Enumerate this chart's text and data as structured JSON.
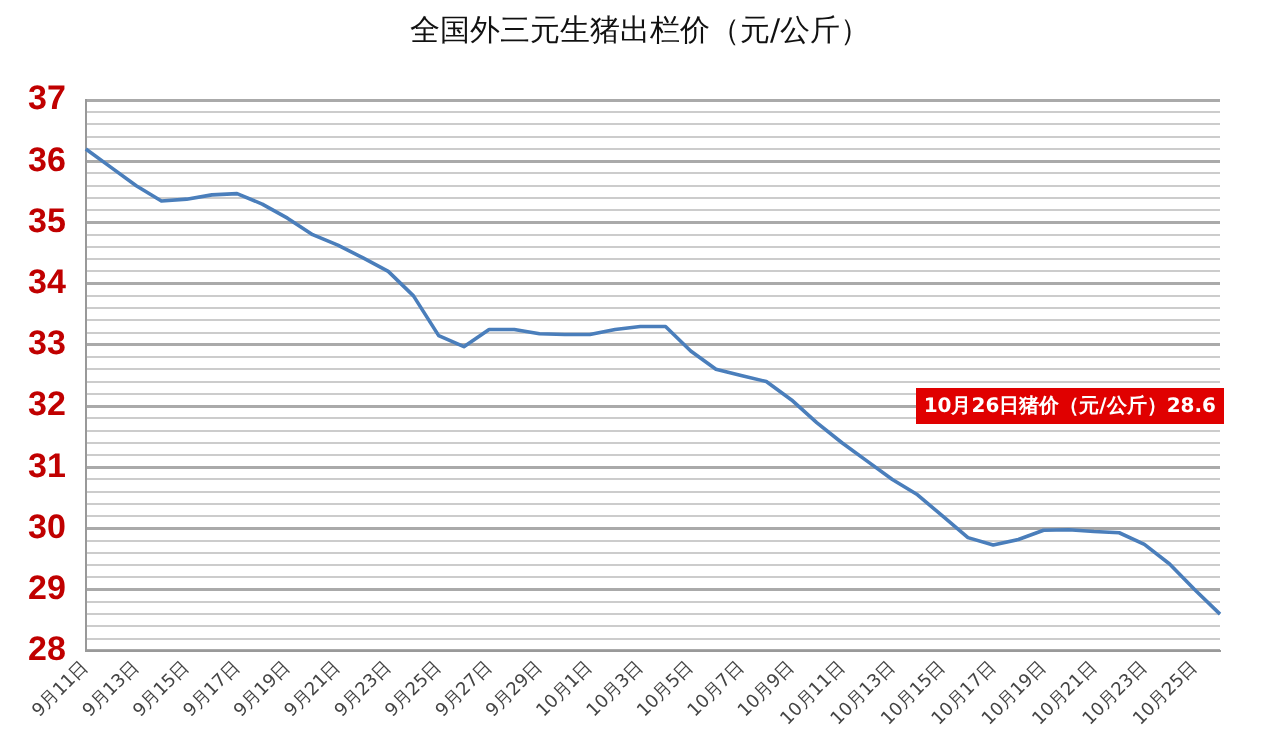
{
  "chart_data": {
    "type": "line",
    "title": "全国外三元生猪出栏价（元/公斤）",
    "categories": [
      "9月11日",
      null,
      "9月13日",
      null,
      "9月15日",
      null,
      "9月17日",
      null,
      "9月19日",
      null,
      "9月21日",
      null,
      "9月23日",
      null,
      "9月25日",
      null,
      "9月27日",
      null,
      "9月29日",
      null,
      "10月1日",
      null,
      "10月3日",
      null,
      "10月5日",
      null,
      "10月7日",
      null,
      "10月9日",
      null,
      "10月11日",
      null,
      "10月13日",
      null,
      "10月15日",
      null,
      "10月17日",
      null,
      "10月19日",
      null,
      "10月21日",
      null,
      "10月23日",
      null,
      "10月25日",
      null
    ],
    "series": [
      {
        "color": "#4a7ebb",
        "values": [
          36.2,
          35.9,
          35.6,
          35.35,
          35.38,
          35.45,
          35.47,
          35.3,
          35.07,
          34.8,
          34.63,
          34.42,
          34.2,
          33.8,
          33.15,
          32.97,
          33.25,
          33.25,
          33.18,
          33.17,
          33.17,
          33.25,
          33.3,
          33.3,
          32.9,
          32.6,
          32.5,
          32.4,
          32.1,
          31.73,
          31.4,
          31.1,
          30.8,
          30.55,
          30.2,
          29.85,
          29.73,
          29.82,
          29.97,
          29.98,
          29.95,
          29.93,
          29.74,
          29.42,
          29.0,
          28.6
        ]
      }
    ],
    "ylim": [
      28,
      37
    ],
    "yticks": [
      28,
      {
        "value": 28.2,
        "label": null
      },
      {
        "value": 28.4,
        "label": null
      },
      {
        "value": 28.6,
        "label": null
      },
      {
        "value": 28.8,
        "label": null
      },
      29,
      {
        "value": 29.2,
        "label": null
      },
      {
        "value": 29.4,
        "label": null
      },
      {
        "value": 29.6,
        "label": null
      },
      {
        "value": 29.8,
        "label": null
      },
      30,
      {
        "value": 30.2,
        "label": null
      },
      {
        "value": 30.4,
        "label": null
      },
      {
        "value": 30.6,
        "label": null
      },
      {
        "value": 30.8,
        "label": null
      },
      31,
      {
        "value": 31.2,
        "label": null
      },
      {
        "value": 31.4,
        "label": null
      },
      {
        "value": 31.6,
        "label": null
      },
      {
        "value": 31.8,
        "label": null
      },
      32,
      {
        "value": 32.2,
        "label": null
      },
      {
        "value": 32.4,
        "label": null
      },
      {
        "value": 32.6,
        "label": null
      },
      {
        "value": 32.8,
        "label": null
      },
      33,
      {
        "value": 33.2,
        "label": null
      },
      {
        "value": 33.4,
        "label": null
      },
      {
        "value": 33.6,
        "label": null
      },
      {
        "value": 33.8,
        "label": null
      },
      34,
      {
        "value": 34.2,
        "label": null
      },
      {
        "value": 34.4,
        "label": null
      },
      {
        "value": 34.6,
        "label": null
      },
      {
        "value": 34.8,
        "label": null
      },
      35,
      {
        "value": 35.2,
        "label": null
      },
      {
        "value": 35.4,
        "label": null
      },
      {
        "value": 35.6,
        "label": null
      },
      {
        "value": 35.8,
        "label": null
      },
      36,
      {
        "value": 36.2,
        "label": null
      },
      {
        "value": 36.4,
        "label": null
      },
      {
        "value": 36.6,
        "label": null
      },
      {
        "value": 36.8,
        "label": null
      },
      37
    ],
    "grid": "y",
    "legend": false,
    "marker": "none",
    "line_style": "solid",
    "annotations": [
      "10月26日猪价（元/公斤）28.6"
    ]
  }
}
